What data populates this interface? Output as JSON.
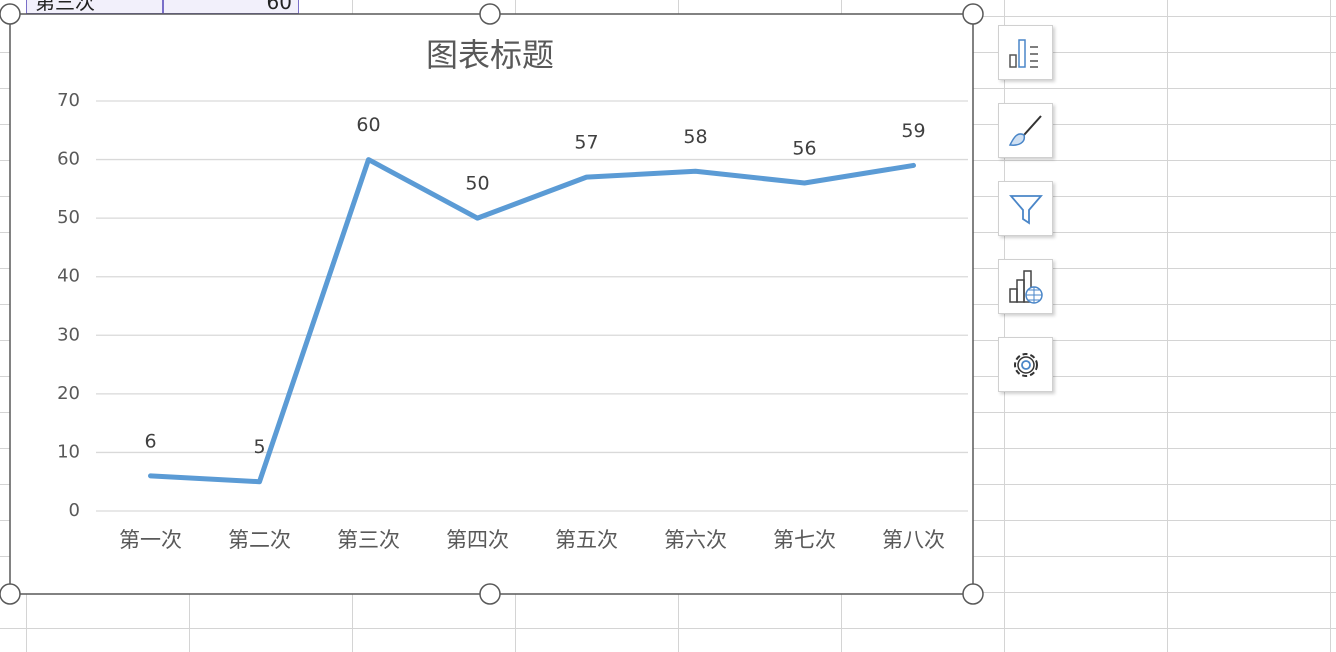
{
  "sheet": {
    "cells": [
      "第三次",
      "60"
    ]
  },
  "chart_data": {
    "type": "line",
    "title": "图表标题",
    "categories": [
      "第一次",
      "第二次",
      "第三次",
      "第四次",
      "第五次",
      "第六次",
      "第七次",
      "第八次"
    ],
    "series": [
      {
        "color": "#5b9bd5",
        "values": [
          6,
          5,
          60,
          50,
          57,
          58,
          56,
          59
        ]
      }
    ],
    "ylim": [
      0,
      70
    ],
    "yticks": [
      0,
      10,
      20,
      30,
      40,
      50,
      60,
      70
    ],
    "grid": true,
    "data_labels": true
  }
}
